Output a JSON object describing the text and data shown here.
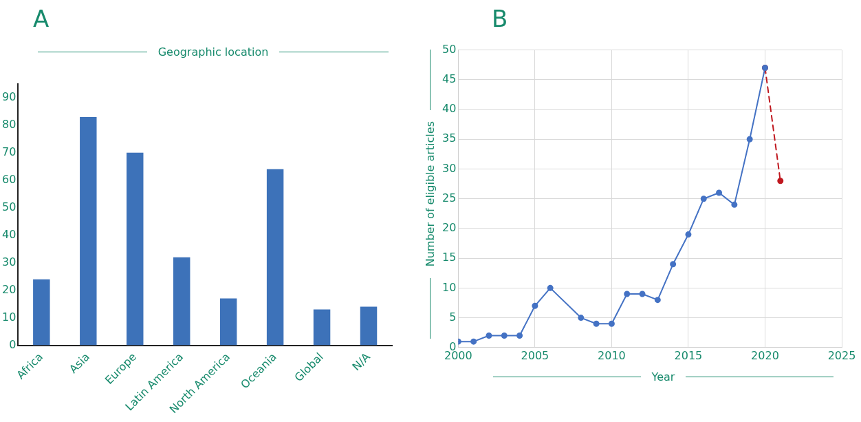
{
  "chart_data": [
    {
      "type": "bar",
      "title": "A",
      "xlabel": "Geographic location",
      "categories": [
        "Africa",
        "Asia",
        "Europe",
        "Latin America",
        "North America",
        "Oceania",
        "Global",
        "N/A"
      ],
      "values": [
        24,
        83,
        70,
        32,
        17,
        64,
        13,
        14
      ],
      "color": "#3d72b9",
      "ylim": [
        0,
        95
      ],
      "yticks": [
        0,
        10,
        20,
        30,
        40,
        50,
        60,
        70,
        80,
        90
      ],
      "grid": false
    },
    {
      "type": "line",
      "title": "B",
      "xlabel": "Year",
      "ylabel": "Number of eligible articles",
      "series": [
        {
          "color": "#4472c4",
          "x": [
            2000,
            2001,
            2002,
            2003,
            2004,
            2005,
            2006,
            2008,
            2009,
            2010,
            2011,
            2012,
            2013,
            2014,
            2015,
            2016,
            2017,
            2018,
            2019,
            2020
          ],
          "values": [
            1,
            1,
            2,
            2,
            2,
            7,
            10,
            5,
            4,
            4,
            9,
            9,
            8,
            14,
            19,
            25,
            26,
            24,
            35,
            47
          ]
        },
        {
          "color": "#c0181f",
          "x": [
            2020,
            2021
          ],
          "values": [
            47,
            28
          ],
          "line_style": "dashed"
        }
      ],
      "xlim": [
        2000,
        2025
      ],
      "xticks": [
        2000,
        2005,
        2010,
        2015,
        2020,
        2025
      ],
      "ylim": [
        0,
        50
      ],
      "yticks": [
        0,
        5,
        10,
        15,
        20,
        25,
        30,
        35,
        40,
        45,
        50
      ],
      "grid": true,
      "marker": "circle"
    }
  ]
}
